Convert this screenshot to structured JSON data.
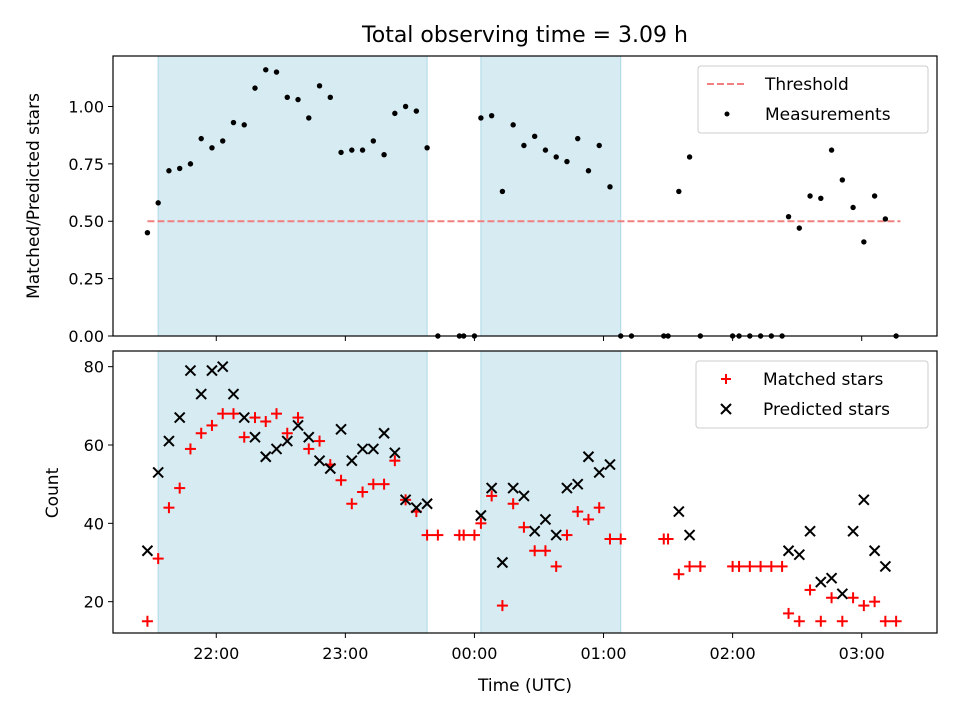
{
  "chart_data": [
    {
      "type": "scatter",
      "title": "Total observing time = 3.09 h",
      "ylabel": "Matched/Predicted stars",
      "xlabel": "",
      "ylim": [
        0,
        1.22
      ],
      "yticks": [
        0.0,
        0.25,
        0.5,
        0.75,
        1.0
      ],
      "ytick_labels": [
        "0.00",
        "0.25",
        "0.50",
        "0.75",
        "1.00"
      ],
      "legend_position": "top-right",
      "threshold": {
        "name": "Threshold",
        "value": 0.5,
        "x_start": "21:28",
        "x_end": "03:18",
        "color": "#f08080"
      },
      "series": [
        {
          "name": "Measurements",
          "color": "#000000",
          "points": [
            [
              "21:28",
              0.45
            ],
            [
              "21:33",
              0.58
            ],
            [
              "21:38",
              0.72
            ],
            [
              "21:43",
              0.73
            ],
            [
              "21:48",
              0.75
            ],
            [
              "21:53",
              0.86
            ],
            [
              "21:58",
              0.82
            ],
            [
              "22:03",
              0.85
            ],
            [
              "22:08",
              0.93
            ],
            [
              "22:13",
              0.92
            ],
            [
              "22:18",
              1.08
            ],
            [
              "22:23",
              1.16
            ],
            [
              "22:28",
              1.15
            ],
            [
              "22:33",
              1.04
            ],
            [
              "22:38",
              1.03
            ],
            [
              "22:43",
              0.95
            ],
            [
              "22:48",
              1.09
            ],
            [
              "22:53",
              1.04
            ],
            [
              "22:58",
              0.8
            ],
            [
              "23:03",
              0.81
            ],
            [
              "23:08",
              0.81
            ],
            [
              "23:13",
              0.85
            ],
            [
              "23:18",
              0.79
            ],
            [
              "23:23",
              0.97
            ],
            [
              "23:28",
              1.0
            ],
            [
              "23:33",
              0.98
            ],
            [
              "23:38",
              0.82
            ],
            [
              "23:43",
              0.0
            ],
            [
              "23:53",
              0.0
            ],
            [
              "23:55",
              0.0
            ],
            [
              "00:00",
              0.0
            ],
            [
              "00:03",
              0.95
            ],
            [
              "00:08",
              0.96
            ],
            [
              "00:13",
              0.63
            ],
            [
              "00:18",
              0.92
            ],
            [
              "00:23",
              0.83
            ],
            [
              "00:28",
              0.87
            ],
            [
              "00:33",
              0.81
            ],
            [
              "00:38",
              0.78
            ],
            [
              "00:43",
              0.76
            ],
            [
              "00:48",
              0.86
            ],
            [
              "00:53",
              0.72
            ],
            [
              "00:58",
              0.83
            ],
            [
              "01:03",
              0.65
            ],
            [
              "01:08",
              0.0
            ],
            [
              "01:13",
              0.0
            ],
            [
              "01:28",
              0.0
            ],
            [
              "01:30",
              0.0
            ],
            [
              "01:35",
              0.63
            ],
            [
              "01:40",
              0.78
            ],
            [
              "01:45",
              0.0
            ],
            [
              "02:00",
              0.0
            ],
            [
              "02:03",
              0.0
            ],
            [
              "02:08",
              0.0
            ],
            [
              "02:13",
              0.0
            ],
            [
              "02:18",
              0.0
            ],
            [
              "02:23",
              0.0
            ],
            [
              "02:26",
              0.52
            ],
            [
              "02:31",
              0.47
            ],
            [
              "02:36",
              0.61
            ],
            [
              "02:41",
              0.6
            ],
            [
              "02:46",
              0.81
            ],
            [
              "02:51",
              0.68
            ],
            [
              "02:56",
              0.56
            ],
            [
              "03:01",
              0.41
            ],
            [
              "03:06",
              0.61
            ],
            [
              "03:11",
              0.51
            ],
            [
              "03:16",
              0.0
            ]
          ]
        }
      ]
    },
    {
      "type": "scatter",
      "title": "",
      "ylabel": "Count",
      "xlabel": "Time (UTC)",
      "ylim": [
        12,
        84
      ],
      "yticks": [
        20,
        40,
        60,
        80
      ],
      "legend_position": "top-right",
      "series": [
        {
          "name": "Matched stars",
          "marker": "+",
          "color": "#ff0000",
          "points": [
            [
              "21:28",
              15
            ],
            [
              "21:33",
              31
            ],
            [
              "21:38",
              44
            ],
            [
              "21:43",
              49
            ],
            [
              "21:48",
              59
            ],
            [
              "21:53",
              63
            ],
            [
              "21:58",
              65
            ],
            [
              "22:03",
              68
            ],
            [
              "22:08",
              68
            ],
            [
              "22:13",
              62
            ],
            [
              "22:18",
              67
            ],
            [
              "22:23",
              66
            ],
            [
              "22:28",
              68
            ],
            [
              "22:33",
              63
            ],
            [
              "22:38",
              67
            ],
            [
              "22:43",
              59
            ],
            [
              "22:48",
              61
            ],
            [
              "22:53",
              55
            ],
            [
              "22:58",
              51
            ],
            [
              "23:03",
              45
            ],
            [
              "23:08",
              48
            ],
            [
              "23:13",
              50
            ],
            [
              "23:18",
              50
            ],
            [
              "23:23",
              56
            ],
            [
              "23:28",
              46
            ],
            [
              "23:33",
              43
            ],
            [
              "23:38",
              37
            ],
            [
              "23:43",
              37
            ],
            [
              "23:53",
              37
            ],
            [
              "23:55",
              37
            ],
            [
              "00:00",
              37
            ],
            [
              "00:03",
              40
            ],
            [
              "00:08",
              47
            ],
            [
              "00:13",
              19
            ],
            [
              "00:18",
              45
            ],
            [
              "00:23",
              39
            ],
            [
              "00:28",
              33
            ],
            [
              "00:33",
              33
            ],
            [
              "00:38",
              29
            ],
            [
              "00:43",
              37
            ],
            [
              "00:48",
              43
            ],
            [
              "00:53",
              41
            ],
            [
              "00:58",
              44
            ],
            [
              "01:03",
              36
            ],
            [
              "01:08",
              36
            ],
            [
              "01:28",
              36
            ],
            [
              "01:30",
              36
            ],
            [
              "01:35",
              27
            ],
            [
              "01:40",
              29
            ],
            [
              "01:45",
              29
            ],
            [
              "02:00",
              29
            ],
            [
              "02:03",
              29
            ],
            [
              "02:08",
              29
            ],
            [
              "02:13",
              29
            ],
            [
              "02:18",
              29
            ],
            [
              "02:23",
              29
            ],
            [
              "02:26",
              17
            ],
            [
              "02:31",
              15
            ],
            [
              "02:36",
              23
            ],
            [
              "02:41",
              15
            ],
            [
              "02:46",
              21
            ],
            [
              "02:51",
              15
            ],
            [
              "02:56",
              21
            ],
            [
              "03:01",
              19
            ],
            [
              "03:06",
              20
            ],
            [
              "03:11",
              15
            ],
            [
              "03:16",
              15
            ]
          ]
        },
        {
          "name": "Predicted stars",
          "marker": "x",
          "color": "#000000",
          "points": [
            [
              "21:28",
              33
            ],
            [
              "21:33",
              53
            ],
            [
              "21:38",
              61
            ],
            [
              "21:43",
              67
            ],
            [
              "21:48",
              79
            ],
            [
              "21:53",
              73
            ],
            [
              "21:58",
              79
            ],
            [
              "22:03",
              80
            ],
            [
              "22:08",
              73
            ],
            [
              "22:13",
              67
            ],
            [
              "22:18",
              62
            ],
            [
              "22:23",
              57
            ],
            [
              "22:28",
              59
            ],
            [
              "22:33",
              61
            ],
            [
              "22:38",
              65
            ],
            [
              "22:43",
              62
            ],
            [
              "22:48",
              56
            ],
            [
              "22:53",
              54
            ],
            [
              "22:58",
              64
            ],
            [
              "23:03",
              56
            ],
            [
              "23:08",
              59
            ],
            [
              "23:13",
              59
            ],
            [
              "23:18",
              63
            ],
            [
              "23:23",
              58
            ],
            [
              "23:28",
              46
            ],
            [
              "23:33",
              44
            ],
            [
              "23:38",
              45
            ],
            [
              "00:03",
              42
            ],
            [
              "00:08",
              49
            ],
            [
              "00:13",
              30
            ],
            [
              "00:18",
              49
            ],
            [
              "00:23",
              47
            ],
            [
              "00:28",
              38
            ],
            [
              "00:33",
              41
            ],
            [
              "00:38",
              37
            ],
            [
              "00:43",
              49
            ],
            [
              "00:48",
              50
            ],
            [
              "00:53",
              57
            ],
            [
              "00:58",
              53
            ],
            [
              "01:03",
              55
            ],
            [
              "01:35",
              43
            ],
            [
              "01:40",
              37
            ],
            [
              "02:26",
              33
            ],
            [
              "02:31",
              32
            ],
            [
              "02:36",
              38
            ],
            [
              "02:41",
              25
            ],
            [
              "02:46",
              26
            ],
            [
              "02:51",
              22
            ],
            [
              "02:56",
              38
            ],
            [
              "03:01",
              46
            ],
            [
              "03:06",
              33
            ],
            [
              "03:11",
              29
            ]
          ]
        }
      ]
    }
  ],
  "shaded_intervals": [
    {
      "start": "21:33",
      "end": "23:38",
      "color": "#add8e6"
    },
    {
      "start": "00:03",
      "end": "01:08",
      "color": "#add8e6"
    }
  ],
  "x_axis": {
    "range": [
      "21:12",
      "03:35"
    ],
    "ticks": [
      "22:00",
      "23:00",
      "00:00",
      "01:00",
      "02:00",
      "03:00"
    ],
    "tick_labels": [
      "22:00",
      "23:00",
      "00:00",
      "01:00",
      "02:00",
      "03:00"
    ]
  }
}
